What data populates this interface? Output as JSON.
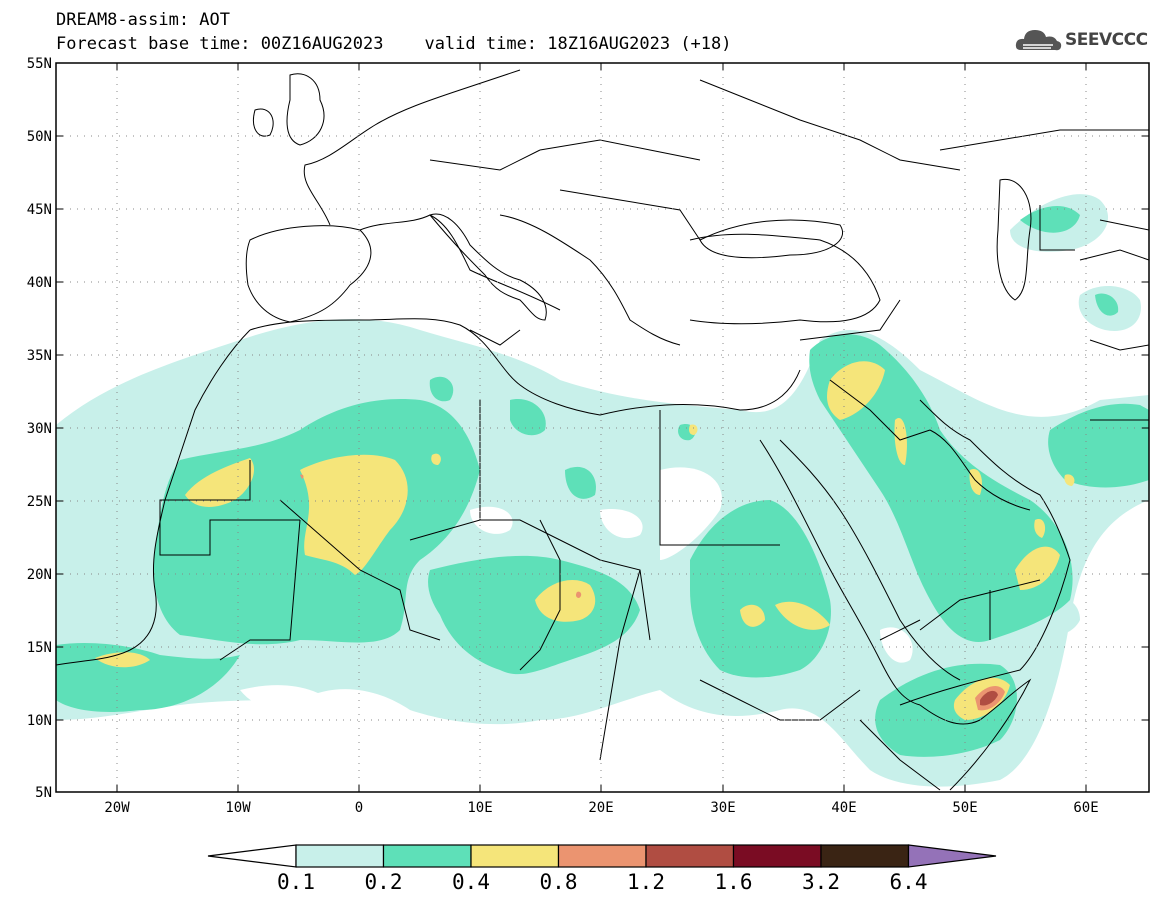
{
  "header": {
    "line1": "DREAM8-assim: AOT",
    "line2": "Forecast base time: 00Z16AUG2023    valid time: 18Z16AUG2023 (+18)",
    "logo_text": "SEEVCCC"
  },
  "map": {
    "region": "North Africa, Europe and Middle East",
    "lon_range": [
      -25,
      65
    ],
    "lat_range": [
      5,
      55
    ],
    "lat_labels": [
      "55N",
      "50N",
      "45N",
      "40N",
      "35N",
      "30N",
      "25N",
      "20N",
      "15N",
      "10N",
      "5N"
    ],
    "lon_labels": [
      "20W",
      "10W",
      "0",
      "10E",
      "20E",
      "30E",
      "40E",
      "50E",
      "60E"
    ]
  },
  "legend": {
    "levels": [
      "0.1",
      "0.2",
      "0.4",
      "0.8",
      "1.2",
      "1.6",
      "3.2",
      "6.4"
    ],
    "colors": [
      "#ffffff",
      "#c8f0ea",
      "#5ee0b8",
      "#f5e57a",
      "#eb9470",
      "#b04d42",
      "#7a0c23",
      "#3a2414",
      "#9472b8"
    ]
  }
}
